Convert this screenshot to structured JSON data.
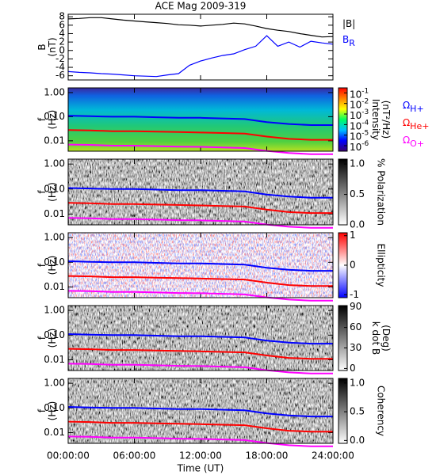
{
  "chart_data": [
    {
      "type": "line",
      "title": "ACE Mag 2009-319",
      "y_label": [
        "B",
        "(nT)"
      ],
      "x": [
        0,
        1,
        2,
        3,
        4,
        5,
        6,
        7,
        8,
        9,
        10,
        11,
        12,
        13,
        14,
        15,
        16,
        17,
        18,
        19,
        20,
        21,
        22,
        23,
        24
      ],
      "xlim": [
        0,
        24
      ],
      "ylim": [
        -7,
        8.6
      ],
      "yticks": [
        -6,
        -4,
        -2,
        0,
        2,
        4,
        6,
        8
      ],
      "series": [
        {
          "name": "|B|",
          "color": "#000000",
          "values": [
            7.5,
            7.6,
            7.8,
            7.8,
            7.5,
            7.2,
            7.0,
            6.8,
            6.6,
            6.4,
            6.1,
            6.0,
            5.8,
            6.0,
            6.2,
            6.5,
            6.3,
            5.8,
            5.2,
            4.8,
            4.5,
            4.0,
            3.6,
            3.2,
            3.3
          ]
        },
        {
          "name": "B",
          "name_sub": "R",
          "color": "#0000ff",
          "values": [
            -5.0,
            -5.2,
            -5.3,
            -5.5,
            -5.6,
            -5.8,
            -6.0,
            -6.1,
            -6.2,
            -5.8,
            -5.5,
            -3.5,
            -2.5,
            -1.8,
            -1.2,
            -0.8,
            0.2,
            1.0,
            3.5,
            1.0,
            2.0,
            0.8,
            2.2,
            1.8,
            1.5
          ]
        }
      ]
    },
    {
      "type": "spectrogram",
      "y_label": [
        "f",
        "(Hz)"
      ],
      "log_y": true,
      "x": [
        0,
        2,
        4,
        6,
        8,
        10,
        12,
        14,
        16,
        18,
        20,
        22,
        24
      ],
      "xlim": [
        0,
        24
      ],
      "ylim": [
        0.0037,
        1.57
      ],
      "yticks": [
        {
          "value": 1,
          "label": "1.00"
        },
        {
          "value": 0.1,
          "label": "0.10"
        },
        0.01
      ],
      "colorbar": {
        "label": [
          "Intensity",
          "(nT²/Hz)"
        ],
        "log": true,
        "clim": [
          3e-07,
          0.3
        ],
        "colors": [
          "#3a006e",
          "#0000ff",
          "#00c0ff",
          "#00ff60",
          "#ffff00",
          "#ff8000",
          "#ff0000"
        ],
        "ticks": [
          {
            "value": 0.1,
            "label": "10",
            "sup": "-1"
          },
          {
            "value": 0.01,
            "label": "10",
            "sup": "-2"
          },
          {
            "value": 0.001,
            "label": "10",
            "sup": "-3"
          },
          {
            "value": 0.0001,
            "label": "10",
            "sup": "-4"
          },
          {
            "value": 1e-05,
            "label": "10",
            "sup": "-5"
          },
          {
            "value": 1e-06,
            "label": "10",
            "sup": "-6"
          }
        ]
      },
      "series": [
        {
          "name": "Ω",
          "name_sub": "H+",
          "color": "#0000ff",
          "values": [
            0.11,
            0.105,
            0.1,
            0.1,
            0.095,
            0.09,
            0.09,
            0.085,
            0.08,
            0.06,
            0.05,
            0.045,
            0.045
          ]
        },
        {
          "name": "Ω",
          "name_sub": "He+",
          "color": "#ff0000",
          "values": [
            0.028,
            0.027,
            0.025,
            0.025,
            0.024,
            0.023,
            0.022,
            0.021,
            0.02,
            0.015,
            0.012,
            0.011,
            0.011
          ]
        },
        {
          "name": "Ω",
          "name_sub": "O+",
          "color": "#ff00ff",
          "values": [
            0.007,
            0.0068,
            0.0063,
            0.0063,
            0.006,
            0.0057,
            0.0056,
            0.0053,
            0.005,
            0.0038,
            0.0031,
            0.0028,
            0.0028
          ]
        }
      ]
    },
    {
      "type": "spectrogram",
      "y_label": [
        "f",
        "(Hz)"
      ],
      "log_y": true,
      "x": [
        0,
        2,
        4,
        6,
        8,
        10,
        12,
        14,
        16,
        18,
        20,
        22,
        24
      ],
      "xlim": [
        0,
        24
      ],
      "ylim": [
        0.0037,
        1.57
      ],
      "yticks": [
        {
          "value": 1,
          "label": "1.00"
        },
        {
          "value": 0.1,
          "label": "0.10"
        },
        0.01
      ],
      "colorbar": {
        "label": [
          "% Polarization"
        ],
        "clim": [
          0,
          1.08
        ],
        "colors": [
          "#ffffff",
          "#000000"
        ],
        "ticks": [
          {
            "value": 0,
            "label": "0.0"
          },
          0.5,
          {
            "value": 1,
            "label": "1.0"
          }
        ]
      },
      "series": [
        {
          "color": "#0000ff",
          "values": [
            0.11,
            0.105,
            0.1,
            0.1,
            0.095,
            0.09,
            0.09,
            0.085,
            0.08,
            0.06,
            0.05,
            0.045,
            0.045
          ]
        },
        {
          "color": "#ff0000",
          "values": [
            0.028,
            0.027,
            0.025,
            0.025,
            0.024,
            0.023,
            0.022,
            0.021,
            0.02,
            0.015,
            0.012,
            0.011,
            0.011
          ]
        },
        {
          "color": "#ff00ff",
          "values": [
            0.007,
            0.0068,
            0.0063,
            0.0063,
            0.006,
            0.0057,
            0.0056,
            0.0053,
            0.005,
            0.0038,
            0.0031,
            0.0028,
            0.0028
          ]
        }
      ]
    },
    {
      "type": "spectrogram",
      "y_label": [
        "f",
        "(Hz)"
      ],
      "log_y": true,
      "x": [
        0,
        2,
        4,
        6,
        8,
        10,
        12,
        14,
        16,
        18,
        20,
        22,
        24
      ],
      "xlim": [
        0,
        24
      ],
      "ylim": [
        0.0037,
        1.57
      ],
      "yticks": [
        {
          "value": 1,
          "label": "1.00"
        },
        {
          "value": 0.1,
          "label": "0.10"
        },
        0.01
      ],
      "colorbar": {
        "label": [
          "Ellipticity"
        ],
        "clim": [
          -1.1,
          1.1
        ],
        "colors": [
          "#0000ff",
          "#ffffff",
          "#ff0000"
        ],
        "ticks": [
          -1,
          0,
          1
        ]
      },
      "series": [
        {
          "color": "#0000ff",
          "values": [
            0.11,
            0.105,
            0.1,
            0.1,
            0.095,
            0.09,
            0.09,
            0.085,
            0.08,
            0.06,
            0.05,
            0.045,
            0.045
          ]
        },
        {
          "color": "#ff0000",
          "values": [
            0.028,
            0.027,
            0.025,
            0.025,
            0.024,
            0.023,
            0.022,
            0.021,
            0.02,
            0.015,
            0.012,
            0.011,
            0.011
          ]
        },
        {
          "color": "#ff00ff",
          "values": [
            0.007,
            0.0068,
            0.0063,
            0.0063,
            0.006,
            0.0057,
            0.0056,
            0.0053,
            0.005,
            0.0038,
            0.0031,
            0.0028,
            0.0028
          ]
        }
      ]
    },
    {
      "type": "spectrogram",
      "y_label": [
        "f",
        "(Hz)"
      ],
      "log_y": true,
      "x": [
        0,
        2,
        4,
        6,
        8,
        10,
        12,
        14,
        16,
        18,
        20,
        22,
        24
      ],
      "xlim": [
        0,
        24
      ],
      "ylim": [
        0.0037,
        1.57
      ],
      "yticks": [
        {
          "value": 1,
          "label": "1.00"
        },
        {
          "value": 0.1,
          "label": "0.10"
        },
        0.01
      ],
      "colorbar": {
        "label": [
          "k dot B",
          "(Deg)"
        ],
        "clim": [
          -3,
          92
        ],
        "colors": [
          "#ffffff",
          "#000000"
        ],
        "ticks": [
          0,
          30,
          60,
          90
        ]
      },
      "series": [
        {
          "color": "#0000ff",
          "values": [
            0.11,
            0.105,
            0.1,
            0.1,
            0.095,
            0.09,
            0.09,
            0.085,
            0.08,
            0.06,
            0.05,
            0.045,
            0.045
          ]
        },
        {
          "color": "#ff0000",
          "values": [
            0.028,
            0.027,
            0.025,
            0.025,
            0.024,
            0.023,
            0.022,
            0.021,
            0.02,
            0.015,
            0.012,
            0.011,
            0.011
          ]
        },
        {
          "color": "#ff00ff",
          "values": [
            0.007,
            0.0068,
            0.0063,
            0.0063,
            0.006,
            0.0057,
            0.0056,
            0.0053,
            0.005,
            0.0038,
            0.0031,
            0.0028,
            0.0028
          ]
        }
      ]
    },
    {
      "type": "spectrogram",
      "y_label": [
        "f",
        "(Hz)"
      ],
      "log_y": true,
      "x_label": "Time (UT)",
      "x": [
        0,
        2,
        4,
        6,
        8,
        10,
        12,
        14,
        16,
        18,
        20,
        22,
        24
      ],
      "xlim": [
        0,
        24
      ],
      "ylim": [
        0.0037,
        1.57
      ],
      "yticks": [
        {
          "value": 1,
          "label": "1.00"
        },
        {
          "value": 0.1,
          "label": "0.10"
        },
        0.01
      ],
      "xticks": [
        {
          "value": 0,
          "label": "00:00:00"
        },
        {
          "value": 6,
          "label": "06:00:00"
        },
        {
          "value": 12,
          "label": "12:00:00"
        },
        {
          "value": 18,
          "label": "18:00:00"
        },
        {
          "value": 24,
          "label": "24:00:00"
        }
      ],
      "colorbar": {
        "label": [
          "Coherency"
        ],
        "clim": [
          -0.05,
          1.08
        ],
        "colors": [
          "#ffffff",
          "#000000"
        ],
        "ticks": [
          {
            "value": 0,
            "label": "0.0"
          },
          0.5,
          {
            "value": 1,
            "label": "1.0"
          }
        ]
      },
      "series": [
        {
          "color": "#0000ff",
          "values": [
            0.11,
            0.105,
            0.1,
            0.1,
            0.095,
            0.09,
            0.09,
            0.085,
            0.08,
            0.06,
            0.05,
            0.045,
            0.045
          ]
        },
        {
          "color": "#ff0000",
          "values": [
            0.028,
            0.027,
            0.025,
            0.025,
            0.024,
            0.023,
            0.022,
            0.021,
            0.02,
            0.015,
            0.012,
            0.011,
            0.011
          ]
        },
        {
          "color": "#ff00ff",
          "values": [
            0.007,
            0.0068,
            0.0063,
            0.0063,
            0.006,
            0.0057,
            0.0056,
            0.0053,
            0.005,
            0.0038,
            0.0031,
            0.0028,
            0.0028
          ]
        }
      ]
    }
  ]
}
